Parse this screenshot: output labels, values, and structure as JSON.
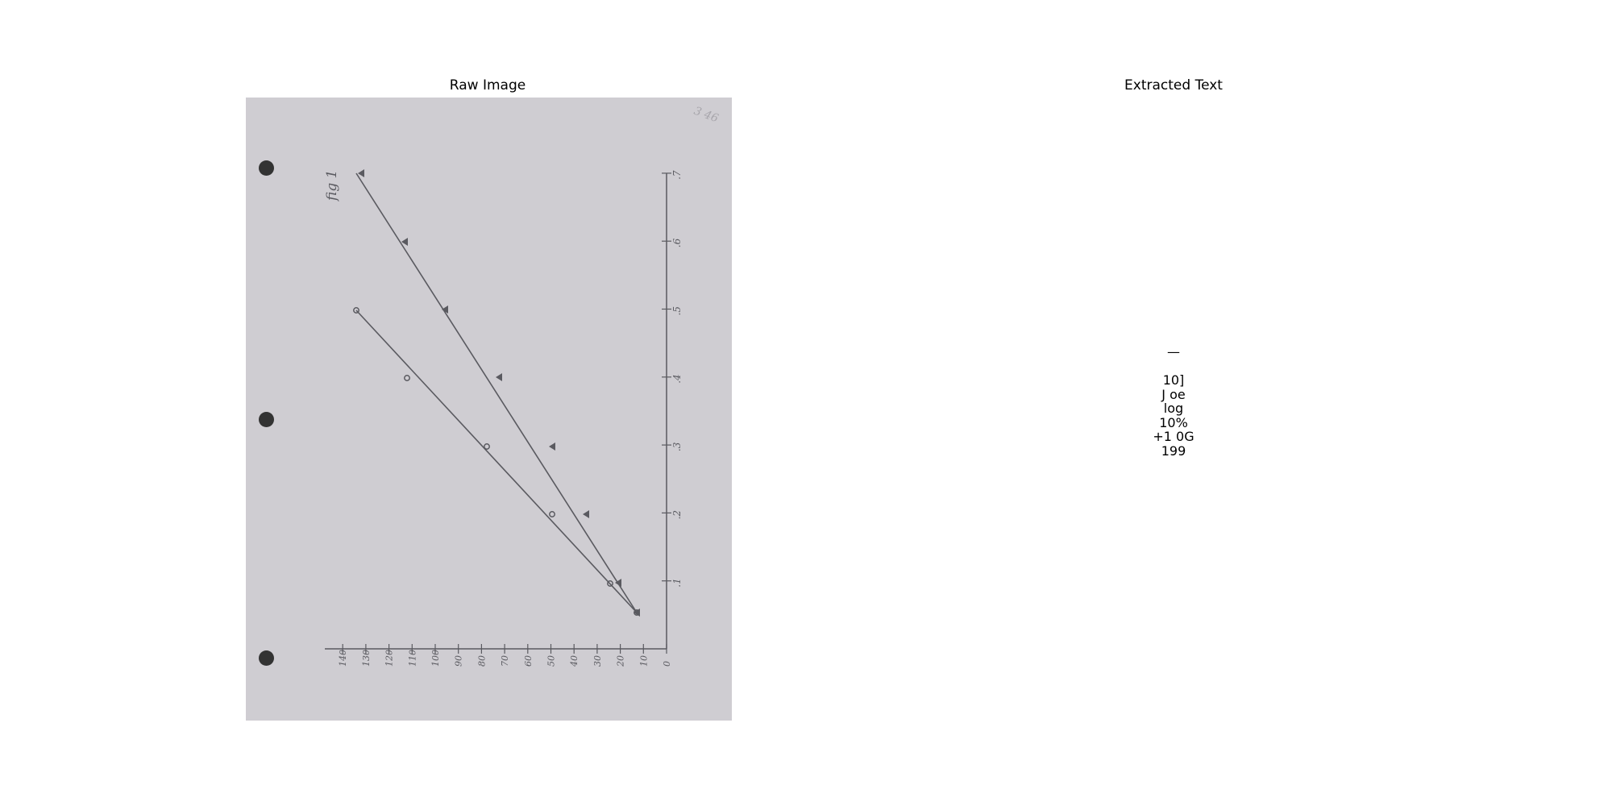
{
  "panels": {
    "left_title": "Raw Image",
    "right_title": "Extracted Text"
  },
  "scan": {
    "figure_label": "fig 1",
    "corner_note": "3 46",
    "x_ticks": [
      "0",
      "10",
      "20",
      "30",
      "40",
      "50",
      "60",
      "70",
      "80",
      "90",
      "100",
      "110",
      "120",
      "130",
      "140"
    ],
    "y_ticks": [
      ".1",
      ".2",
      ".3",
      ".4",
      ".5",
      ".6",
      ".7"
    ]
  },
  "extracted_lines": [
    "—",
    "",
    "10]",
    "J oe",
    "log",
    "10%",
    "+1 0G",
    "199"
  ],
  "colors": {
    "paper": "#cfcdd2",
    "ink": "#5a5a60",
    "hole": "#333333"
  }
}
